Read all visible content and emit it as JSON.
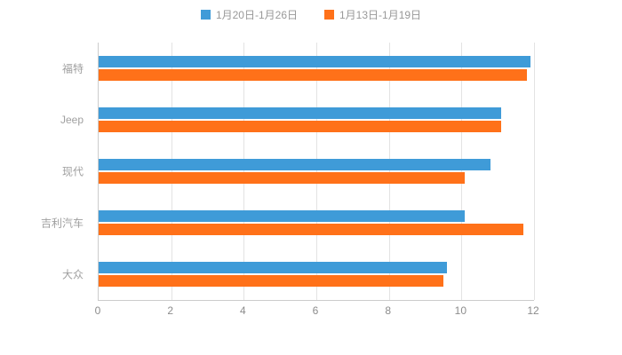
{
  "legend": [
    {
      "label": "1月20日-1月26日",
      "color": "#3f9bd8"
    },
    {
      "label": "1月13日-1月19日",
      "color": "#ff7119"
    }
  ],
  "chart_data": {
    "type": "bar",
    "orientation": "horizontal",
    "title": "",
    "xlabel": "",
    "ylabel": "",
    "categories": [
      "福特",
      "Jeep",
      "现代",
      "吉利汽车",
      "大众"
    ],
    "series": [
      {
        "name": "1月20日-1月26日",
        "color": "#3f9bd8",
        "values": [
          11.9,
          11.1,
          10.8,
          10.1,
          9.6
        ]
      },
      {
        "name": "1月13日-1月19日",
        "color": "#ff7119",
        "values": [
          11.8,
          11.1,
          10.1,
          11.7,
          9.5
        ]
      }
    ],
    "xlim": [
      0,
      12
    ],
    "xticks": [
      0,
      2,
      4,
      6,
      8,
      10,
      12
    ],
    "grid": true,
    "legend_position": "top"
  }
}
